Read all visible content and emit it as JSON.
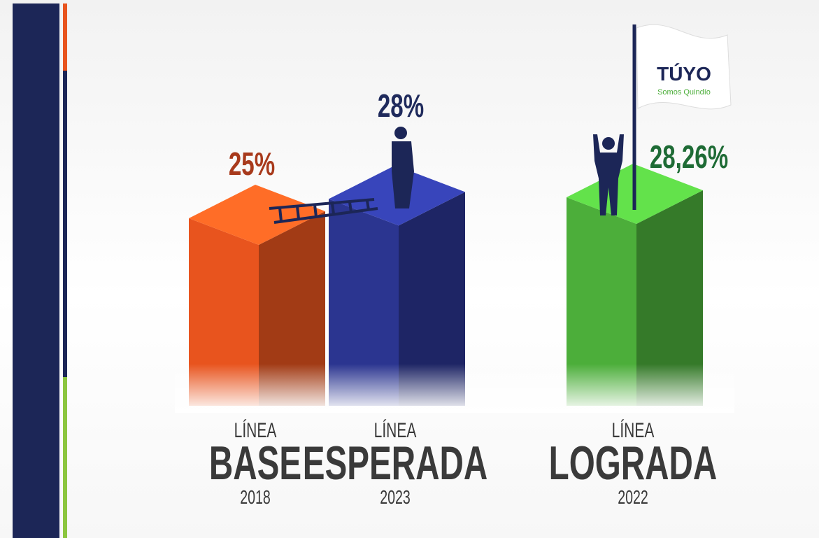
{
  "chart_data": {
    "type": "bar3d",
    "categories": [
      {
        "kicker": "LÍNEA",
        "name": "BASE",
        "year": "2018"
      },
      {
        "kicker": "LÍNEA",
        "name": "ESPERADA",
        "year": "2023"
      },
      {
        "kicker": "LÍNEA",
        "name": "LOGRADA",
        "year": "2022"
      }
    ],
    "values": [
      25,
      28,
      28.26
    ],
    "value_labels": [
      "25%",
      "28%",
      "28,26%"
    ],
    "colors": [
      "#e8541e",
      "#2b3590",
      "#4cae3a"
    ],
    "label_colors": [
      "#a83a1c",
      "#1f2a5c",
      "#1e6b35"
    ],
    "ylim": [
      0,
      30
    ]
  },
  "logo": {
    "name": "TÚYO",
    "tagline": "Somos Quindío"
  }
}
